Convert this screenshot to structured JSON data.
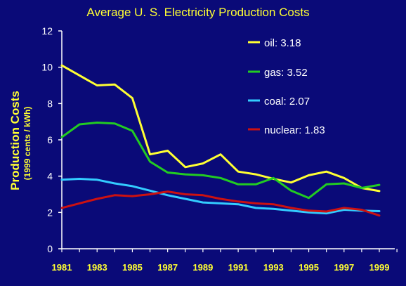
{
  "chart_data": {
    "type": "line",
    "title": "Average U. S. Electricity Production Costs",
    "ylabel": "Production Costs",
    "ylabel_sub": "(1999 cents / kWh)",
    "xlabel": "",
    "x": [
      1981,
      1982,
      1983,
      1984,
      1985,
      1986,
      1987,
      1988,
      1989,
      1990,
      1991,
      1992,
      1993,
      1994,
      1995,
      1996,
      1997,
      1998,
      1999
    ],
    "xticks": [
      "1981",
      "1983",
      "1985",
      "1987",
      "1989",
      "1991",
      "1993",
      "1995",
      "1997",
      "1999"
    ],
    "yticks": [
      "0",
      "2",
      "4",
      "6",
      "8",
      "10",
      "12"
    ],
    "ylim": [
      0,
      12
    ],
    "xlim": [
      1981,
      1999
    ],
    "grid": false,
    "legend_position": "top-right",
    "series": [
      {
        "name": "oil",
        "legend_label": "oil:  3.18",
        "color": "#ffff33",
        "values": [
          10.1,
          9.55,
          9.0,
          9.05,
          8.3,
          5.2,
          5.4,
          4.5,
          4.7,
          5.2,
          4.25,
          4.1,
          3.85,
          3.65,
          4.05,
          4.25,
          3.9,
          3.35,
          3.18
        ]
      },
      {
        "name": "gas",
        "legend_label": "gas:  3.52",
        "color": "#22cc22",
        "values": [
          6.15,
          6.85,
          6.95,
          6.9,
          6.5,
          4.8,
          4.2,
          4.1,
          4.05,
          3.9,
          3.55,
          3.55,
          3.9,
          3.2,
          2.8,
          3.55,
          3.6,
          3.35,
          3.52
        ]
      },
      {
        "name": "coal",
        "legend_label": "coal: 2.07",
        "color": "#33ccff",
        "values": [
          3.8,
          3.85,
          3.8,
          3.6,
          3.45,
          3.2,
          2.95,
          2.75,
          2.55,
          2.5,
          2.45,
          2.25,
          2.2,
          2.1,
          2.0,
          1.95,
          2.15,
          2.1,
          2.07
        ]
      },
      {
        "name": "nuclear",
        "legend_label": "nuclear:  1.83",
        "color": "#cc1111",
        "values": [
          2.25,
          2.5,
          2.75,
          2.95,
          2.9,
          3.0,
          3.15,
          3.0,
          2.95,
          2.75,
          2.6,
          2.5,
          2.45,
          2.25,
          2.1,
          2.05,
          2.25,
          2.15,
          1.83
        ]
      }
    ]
  }
}
